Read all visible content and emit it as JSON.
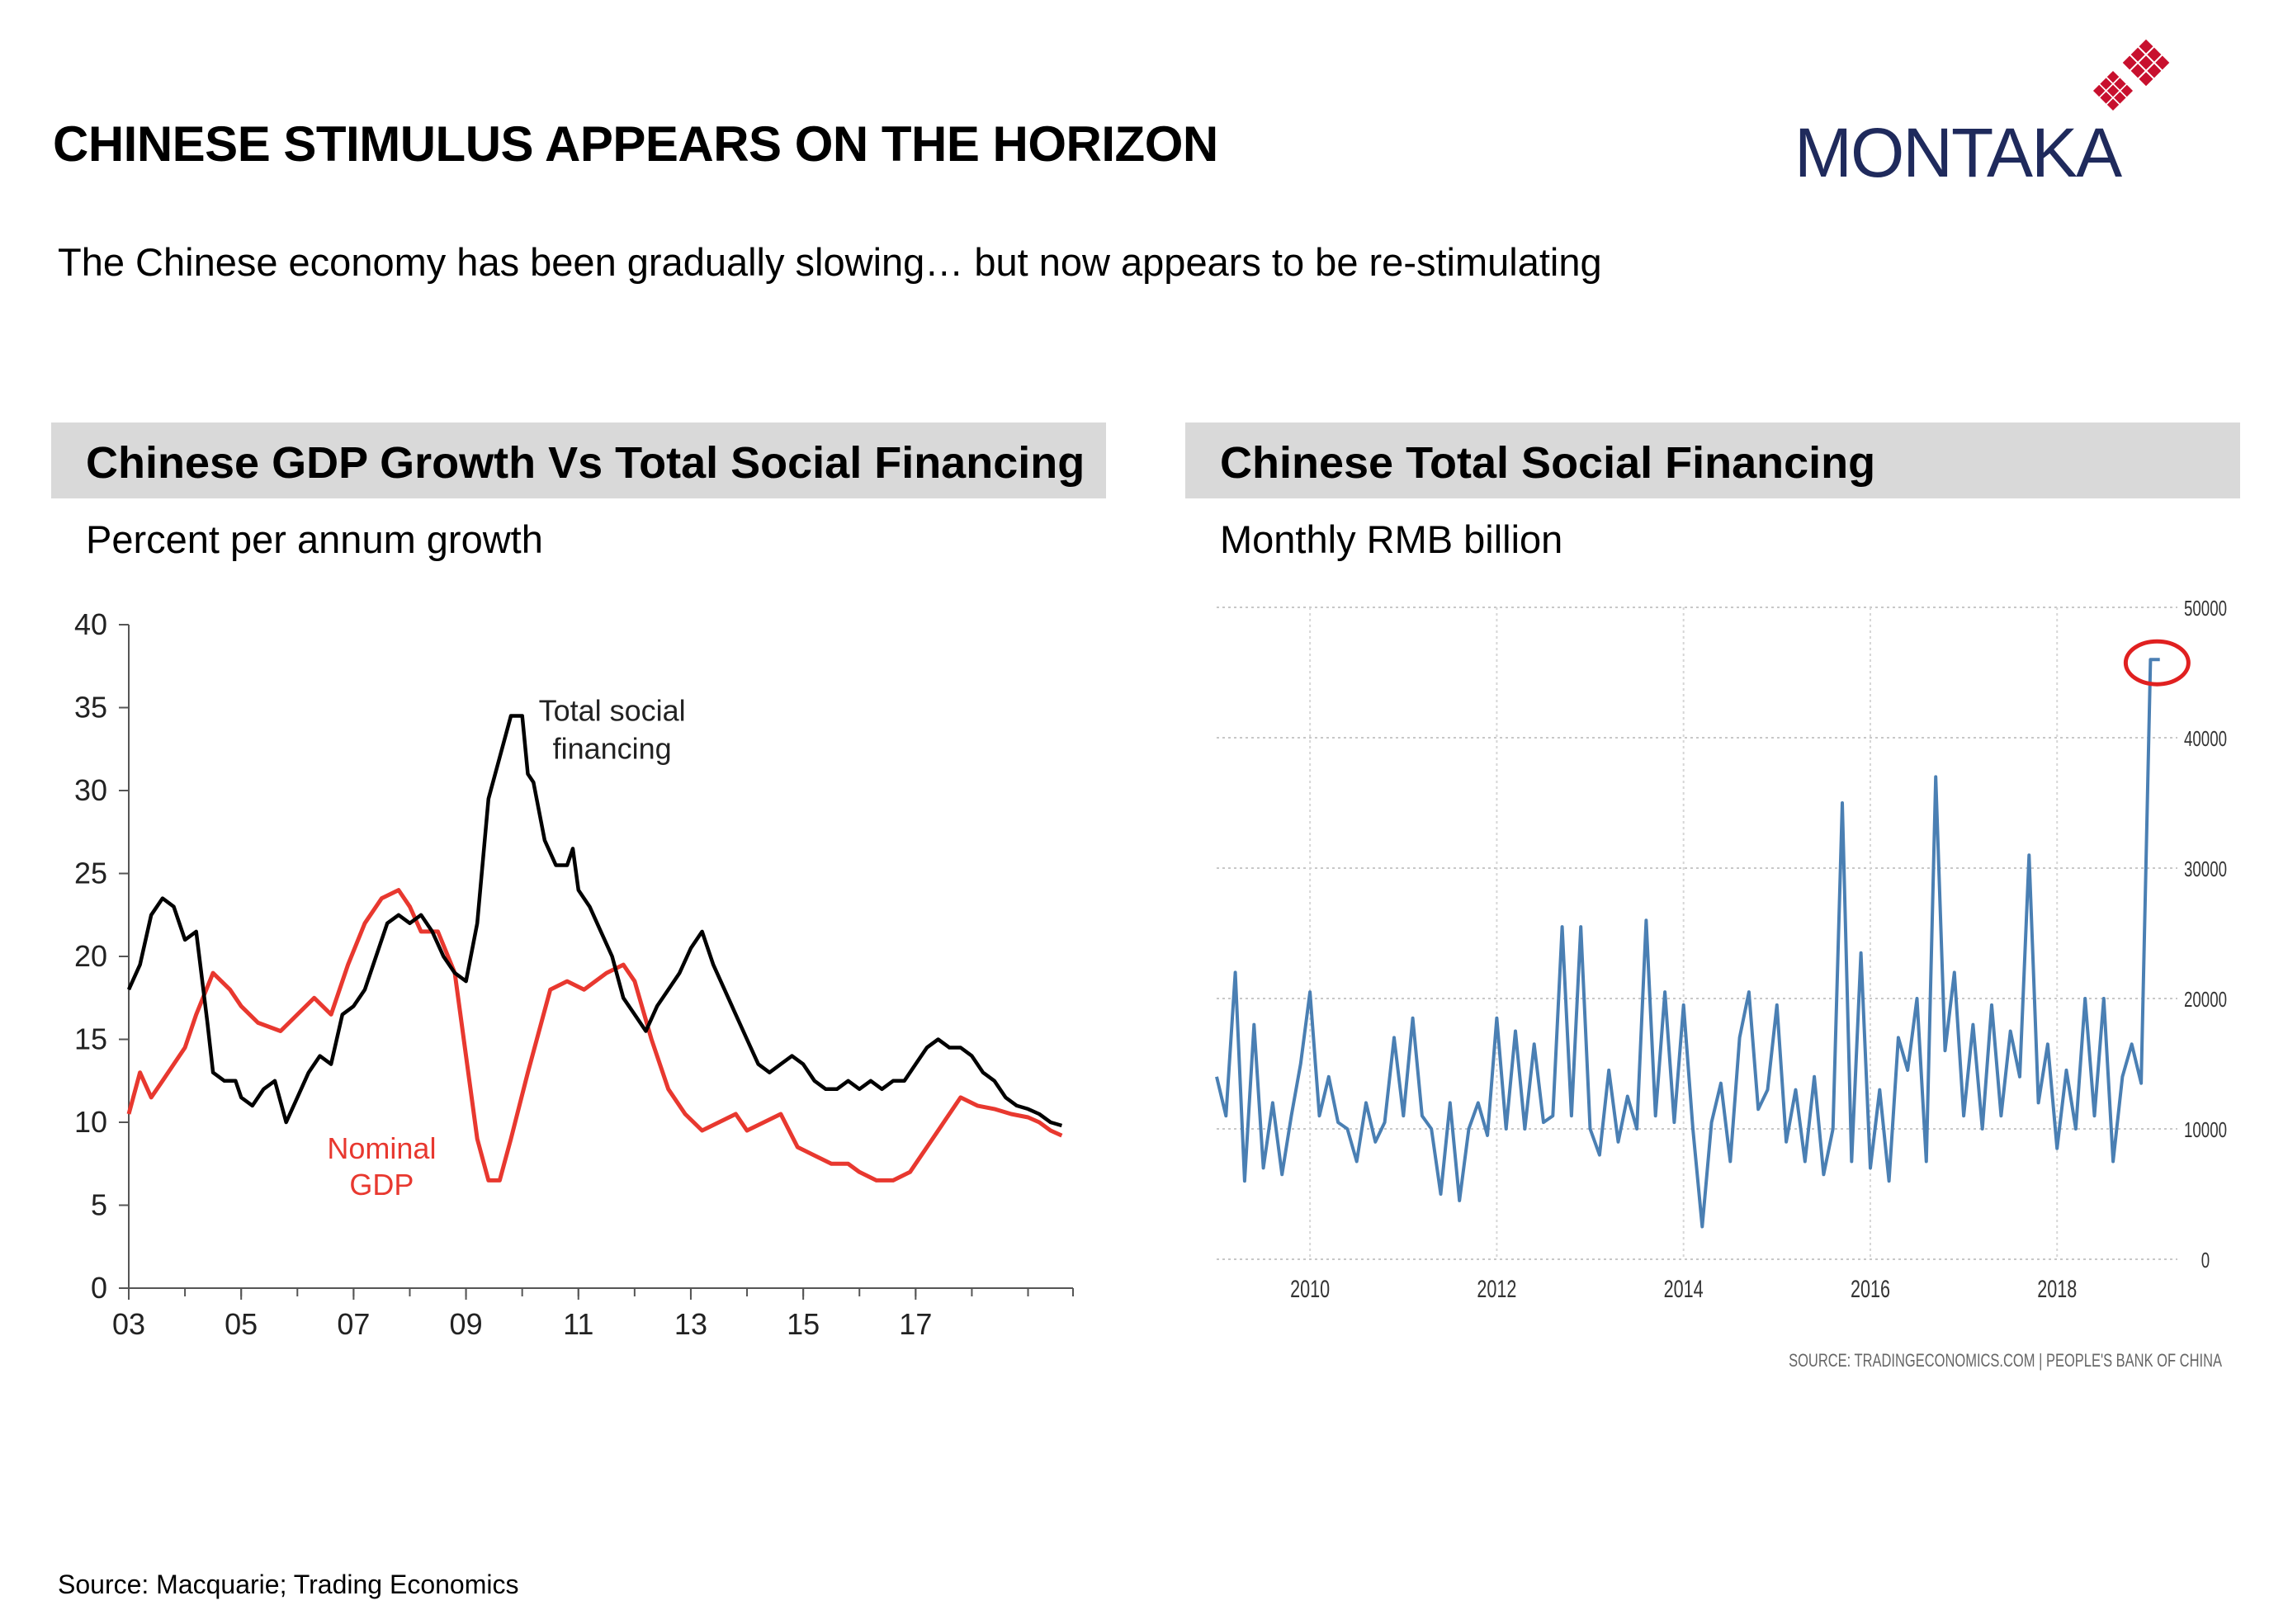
{
  "page": {
    "title": "CHINESE STIMULUS APPEARS ON THE HORIZON",
    "subtitle": "The Chinese economy has been gradually slowing… but now appears to be re-stimulating",
    "logo_text": "MONTAKA",
    "source": "Source: Macquarie; Trading Economics"
  },
  "colors": {
    "header_bg": "#d9d9d9",
    "tsf_line": "#000000",
    "gdp_line": "#e8382f",
    "tsf_monthly_line": "#4a7fb3",
    "highlight_circle": "#e02020",
    "logo_navy": "#1f2a5c",
    "logo_red": "#c8102e"
  },
  "left_panel": {
    "header": "Chinese GDP Growth Vs Total Social Financing",
    "subheader": "Percent per annum growth"
  },
  "right_panel": {
    "header": "Chinese Total Social Financing",
    "subheader": "Monthly RMB billion",
    "chart_source": "SOURCE: TRADINGECONOMICS.COM | PEOPLE'S BANK OF CHINA"
  },
  "chart_data": [
    {
      "type": "line",
      "x_unit": "year",
      "xlim": [
        2003,
        2019.8
      ],
      "ylim": [
        0,
        40
      ],
      "y_ticks": [
        0,
        5,
        10,
        15,
        20,
        25,
        30,
        35,
        40
      ],
      "x_ticks": [
        2003,
        2005,
        2007,
        2009,
        2011,
        2013,
        2015,
        2017
      ],
      "x_tick_labels": [
        "03",
        "05",
        "07",
        "09",
        "11",
        "13",
        "15",
        "17"
      ],
      "series": [
        {
          "name": "Total social financing",
          "color": "#000000",
          "x": [
            2003.0,
            2003.2,
            2003.4,
            2003.6,
            2003.8,
            2004.0,
            2004.2,
            2004.4,
            2004.5,
            2004.7,
            2004.9,
            2005.0,
            2005.2,
            2005.4,
            2005.6,
            2005.8,
            2006.0,
            2006.2,
            2006.4,
            2006.6,
            2006.8,
            2007.0,
            2007.2,
            2007.4,
            2007.6,
            2007.8,
            2008.0,
            2008.2,
            2008.4,
            2008.6,
            2008.8,
            2009.0,
            2009.2,
            2009.4,
            2009.6,
            2009.8,
            2010.0,
            2010.1,
            2010.2,
            2010.4,
            2010.6,
            2010.8,
            2010.9,
            2011.0,
            2011.2,
            2011.4,
            2011.6,
            2011.8,
            2012.0,
            2012.2,
            2012.4,
            2012.6,
            2012.8,
            2013.0,
            2013.2,
            2013.4,
            2013.6,
            2013.8,
            2014.0,
            2014.2,
            2014.4,
            2014.6,
            2014.8,
            2015.0,
            2015.2,
            2015.4,
            2015.6,
            2015.8,
            2016.0,
            2016.2,
            2016.4,
            2016.6,
            2016.8,
            2017.0,
            2017.2,
            2017.4,
            2017.6,
            2017.8,
            2018.0,
            2018.2,
            2018.4,
            2018.6,
            2018.8,
            2019.0,
            2019.2,
            2019.4,
            2019.6
          ],
          "values": [
            18.0,
            19.5,
            22.5,
            23.5,
            23.0,
            21.0,
            21.5,
            16.0,
            13.0,
            12.5,
            12.5,
            11.5,
            11.0,
            12.0,
            12.5,
            10.0,
            11.5,
            13.0,
            14.0,
            13.5,
            16.5,
            17.0,
            18.0,
            20.0,
            22.0,
            22.5,
            22.0,
            22.5,
            21.5,
            20.0,
            19.0,
            18.5,
            22.0,
            29.5,
            32.0,
            34.5,
            34.5,
            31.0,
            30.5,
            27.0,
            25.5,
            25.5,
            26.5,
            24.0,
            23.0,
            21.5,
            20.0,
            17.5,
            16.5,
            15.5,
            17.0,
            18.0,
            19.0,
            20.5,
            21.5,
            19.5,
            18.0,
            16.5,
            15.0,
            13.5,
            13.0,
            13.5,
            14.0,
            13.5,
            12.5,
            12.0,
            12.0,
            12.5,
            12.0,
            12.5,
            12.0,
            12.5,
            12.5,
            13.5,
            14.5,
            15.0,
            14.5,
            14.5,
            14.0,
            13.0,
            12.5,
            11.5,
            11.0,
            10.8,
            10.5,
            10.0,
            9.8
          ]
        },
        {
          "name": "Nominal GDP",
          "color": "#e8382f",
          "x": [
            2003.0,
            2003.2,
            2003.4,
            2003.6,
            2003.8,
            2004.0,
            2004.2,
            2004.5,
            2004.8,
            2005.0,
            2005.3,
            2005.7,
            2006.0,
            2006.3,
            2006.6,
            2006.9,
            2007.2,
            2007.5,
            2007.8,
            2008.0,
            2008.2,
            2008.5,
            2008.8,
            2009.0,
            2009.2,
            2009.4,
            2009.6,
            2009.8,
            2010.1,
            2010.5,
            2010.8,
            2011.1,
            2011.5,
            2011.8,
            2012.0,
            2012.3,
            2012.6,
            2012.9,
            2013.2,
            2013.5,
            2013.8,
            2014.0,
            2014.3,
            2014.6,
            2014.9,
            2015.2,
            2015.5,
            2015.8,
            2016.0,
            2016.3,
            2016.6,
            2016.9,
            2017.2,
            2017.5,
            2017.8,
            2018.1,
            2018.4,
            2018.7,
            2019.0,
            2019.2,
            2019.4,
            2019.6
          ],
          "values": [
            10.5,
            13.0,
            11.5,
            12.5,
            13.5,
            14.5,
            16.5,
            19.0,
            18.0,
            17.0,
            16.0,
            15.5,
            16.5,
            17.5,
            16.5,
            19.5,
            22.0,
            23.5,
            24.0,
            23.0,
            21.5,
            21.5,
            19.0,
            14.0,
            9.0,
            6.5,
            6.5,
            9.0,
            13.0,
            18.0,
            18.5,
            18.0,
            19.0,
            19.5,
            18.5,
            15.0,
            12.0,
            10.5,
            9.5,
            10.0,
            10.5,
            9.5,
            10.0,
            10.5,
            8.5,
            8.0,
            7.5,
            7.5,
            7.0,
            6.5,
            6.5,
            7.0,
            8.5,
            10.0,
            11.5,
            11.0,
            10.8,
            10.5,
            10.3,
            10.0,
            9.5,
            9.2
          ]
        }
      ],
      "annotations": [
        {
          "text_line1": "Total social",
          "text_line2": "financing",
          "x": 2011.6,
          "y": 34.2
        },
        {
          "text_line1": "Nominal",
          "text_line2": "GDP",
          "x": 2007.5,
          "y": 7.8
        }
      ]
    },
    {
      "type": "line",
      "x_unit": "year",
      "xlim": [
        2009.0,
        2019.2
      ],
      "ylim": [
        0,
        50000
      ],
      "y_ticks": [
        0,
        10000,
        20000,
        30000,
        40000,
        50000
      ],
      "x_ticks": [
        2010,
        2012,
        2014,
        2016,
        2018
      ],
      "series": [
        {
          "name": "",
          "color": "#4a7fb3",
          "x": [
            2009.0,
            2009.1,
            2009.2,
            2009.3,
            2009.4,
            2009.5,
            2009.6,
            2009.7,
            2009.8,
            2009.9,
            2010.0,
            2010.1,
            2010.2,
            2010.3,
            2010.4,
            2010.5,
            2010.6,
            2010.7,
            2010.8,
            2010.9,
            2011.0,
            2011.1,
            2011.2,
            2011.3,
            2011.4,
            2011.5,
            2011.6,
            2011.7,
            2011.8,
            2011.9,
            2012.0,
            2012.1,
            2012.2,
            2012.3,
            2012.4,
            2012.5,
            2012.6,
            2012.7,
            2012.8,
            2012.9,
            2013.0,
            2013.1,
            2013.2,
            2013.3,
            2013.4,
            2013.5,
            2013.6,
            2013.7,
            2013.8,
            2013.9,
            2014.0,
            2014.1,
            2014.2,
            2014.3,
            2014.4,
            2014.5,
            2014.6,
            2014.7,
            2014.8,
            2014.9,
            2015.0,
            2015.1,
            2015.2,
            2015.3,
            2015.4,
            2015.5,
            2015.6,
            2015.7,
            2015.8,
            2015.9,
            2016.0,
            2016.1,
            2016.2,
            2016.3,
            2016.4,
            2016.5,
            2016.6,
            2016.7,
            2016.8,
            2016.9,
            2017.0,
            2017.1,
            2017.2,
            2017.3,
            2017.4,
            2017.5,
            2017.6,
            2017.7,
            2017.8,
            2017.9,
            2018.0,
            2018.1,
            2018.2,
            2018.3,
            2018.4,
            2018.5,
            2018.6,
            2018.7,
            2018.8,
            2018.9,
            2019.0,
            2019.1
          ],
          "values": [
            14000,
            11000,
            22000,
            6000,
            18000,
            7000,
            12000,
            6500,
            11000,
            15000,
            20500,
            11000,
            14000,
            10500,
            10000,
            7500,
            12000,
            9000,
            10500,
            17000,
            11000,
            18500,
            11000,
            10000,
            5000,
            12000,
            4500,
            10000,
            12000,
            9500,
            18500,
            10000,
            17500,
            10000,
            16500,
            10500,
            11000,
            25500,
            11000,
            25500,
            10000,
            8000,
            14500,
            9000,
            12500,
            10000,
            26000,
            11000,
            20500,
            10500,
            19500,
            10000,
            2500,
            10500,
            13500,
            7500,
            17000,
            20500,
            11500,
            13000,
            19500,
            9000,
            13000,
            7500,
            14000,
            6500,
            10000,
            35000,
            7500,
            23500,
            7000,
            13000,
            6000,
            17000,
            14500,
            20000,
            7500,
            37000,
            16000,
            22000,
            11000,
            18000,
            10000,
            19500,
            11000,
            17500,
            14000,
            31000,
            12000,
            16500,
            8500,
            14500,
            10000,
            20000,
            11000,
            20000,
            7500,
            14000,
            16500,
            13500,
            46000,
            46000
          ]
        }
      ],
      "highlight": {
        "x": 2019.0,
        "y": 46000
      }
    }
  ]
}
